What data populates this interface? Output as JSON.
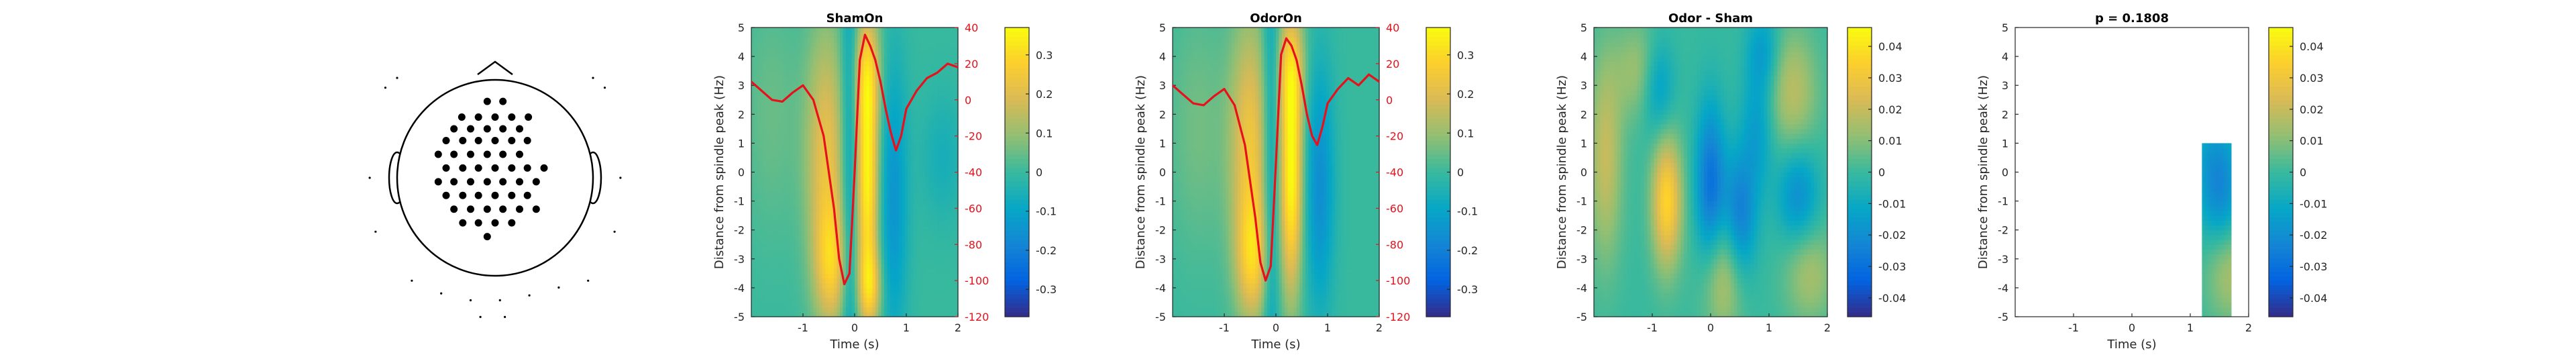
{
  "figure": {
    "colormap": "parula",
    "parula_stops": [
      "#352a87",
      "#0363e1",
      "#1485d4",
      "#06a7c6",
      "#38b99e",
      "#92bf73",
      "#d9ba56",
      "#fcce2e",
      "#f9fb0e"
    ],
    "trace_color": "#e8101a",
    "right_axis_color": "#e8101a"
  },
  "topoplot": {
    "electrode_rows": [
      {
        "y": 0.78,
        "xs": [
          -0.08,
          0.08
        ]
      },
      {
        "y": 0.62,
        "xs": [
          -0.34,
          -0.17,
          0.0,
          0.17,
          0.34
        ]
      },
      {
        "y": 0.5,
        "xs": [
          -0.42,
          -0.25,
          -0.08,
          0.08,
          0.25
        ]
      },
      {
        "y": 0.38,
        "xs": [
          -0.5,
          -0.33,
          -0.17,
          0.0,
          0.17,
          0.33
        ]
      },
      {
        "y": 0.24,
        "xs": [
          -0.58,
          -0.42,
          -0.25,
          -0.08,
          0.08,
          0.25
        ]
      },
      {
        "y": 0.1,
        "xs": [
          -0.5,
          -0.33,
          -0.17,
          0.0,
          0.17,
          0.33,
          0.5
        ]
      },
      {
        "y": -0.04,
        "xs": [
          -0.58,
          -0.42,
          -0.25,
          -0.08,
          0.08,
          0.25,
          0.42
        ]
      },
      {
        "y": -0.18,
        "xs": [
          -0.5,
          -0.33,
          -0.17,
          0.0,
          0.17,
          0.33
        ]
      },
      {
        "y": -0.32,
        "xs": [
          -0.42,
          -0.25,
          -0.08,
          0.08,
          0.25,
          0.42
        ]
      },
      {
        "y": -0.46,
        "xs": [
          -0.33,
          -0.17,
          0.0,
          0.17
        ]
      },
      {
        "y": -0.6,
        "xs": [
          -0.08
        ]
      }
    ],
    "outer_electrodes": [
      [
        -1.12,
        0.92
      ],
      [
        -1.0,
        1.02
      ],
      [
        1.0,
        1.02
      ],
      [
        1.12,
        0.92
      ],
      [
        -1.28,
        0.0
      ],
      [
        -1.22,
        -0.55
      ],
      [
        1.22,
        -0.55
      ],
      [
        1.28,
        0.0
      ],
      [
        -0.85,
        -1.05
      ],
      [
        -0.55,
        -1.18
      ],
      [
        -0.25,
        -1.25
      ],
      [
        0.05,
        -1.25
      ],
      [
        0.35,
        -1.2
      ],
      [
        0.65,
        -1.12
      ],
      [
        0.95,
        -1.05
      ],
      [
        -0.15,
        -1.42
      ],
      [
        0.1,
        -1.42
      ]
    ]
  },
  "chart_data": [
    {
      "type": "heatmap",
      "title": "ShamOn",
      "xlabel": "Time (s)",
      "ylabel": "Distance from spindle peak (Hz)",
      "xlim": [
        -2,
        2
      ],
      "ylim": [
        -5,
        5
      ],
      "xticks": [
        -1,
        0,
        1,
        2
      ],
      "yticks": [
        -5,
        -4,
        -3,
        -2,
        -1,
        0,
        1,
        2,
        3,
        4,
        5
      ],
      "colorbar": {
        "clim": [
          -0.37,
          0.37
        ],
        "ticks": [
          -0.3,
          -0.2,
          -0.1,
          0,
          0.1,
          0.2,
          0.3
        ]
      },
      "features": [
        {
          "t": -0.55,
          "f": 0.5,
          "st": 0.28,
          "sf": 3.2,
          "a": 0.22
        },
        {
          "t": -0.45,
          "f": -3.2,
          "st": 0.22,
          "sf": 1.5,
          "a": 0.2
        },
        {
          "t": 0.25,
          "f": -0.3,
          "st": 0.15,
          "sf": 2.8,
          "a": 0.35
        },
        {
          "t": 0.25,
          "f": 3.5,
          "st": 0.18,
          "sf": 1.5,
          "a": 0.2
        },
        {
          "t": 0.3,
          "f": -4.0,
          "st": 0.16,
          "sf": 1.0,
          "a": 0.2
        },
        {
          "t": -0.1,
          "f": 0.0,
          "st": 0.12,
          "sf": 6.0,
          "a": -0.14
        },
        {
          "t": 0.75,
          "f": -1.0,
          "st": 0.2,
          "sf": 3.5,
          "a": -0.14
        },
        {
          "t": 1.7,
          "f": 0.5,
          "st": 0.3,
          "sf": 1.6,
          "a": -0.06
        },
        {
          "t": -1.6,
          "f": 2.0,
          "st": 0.4,
          "sf": 3.0,
          "a": 0.05
        }
      ],
      "right_axis": {
        "ylim": [
          -120,
          40
        ],
        "ticks": [
          -120,
          -100,
          -80,
          -60,
          -40,
          -20,
          0,
          20,
          40
        ],
        "trace": {
          "x": [
            -2.0,
            -1.8,
            -1.6,
            -1.4,
            -1.2,
            -1.0,
            -0.8,
            -0.6,
            -0.4,
            -0.3,
            -0.2,
            -0.1,
            0.0,
            0.1,
            0.2,
            0.3,
            0.4,
            0.5,
            0.6,
            0.7,
            0.8,
            0.9,
            1.0,
            1.2,
            1.4,
            1.6,
            1.8,
            2.0
          ],
          "y": [
            10,
            5,
            0,
            -1,
            4,
            8,
            0,
            -20,
            -60,
            -88,
            -102,
            -96,
            -40,
            22,
            36,
            30,
            22,
            10,
            -5,
            -18,
            -28,
            -20,
            -5,
            5,
            12,
            15,
            20,
            18
          ]
        }
      }
    },
    {
      "type": "heatmap",
      "title": "OdorOn",
      "xlabel": "Time (s)",
      "ylabel": "Distance from spindle peak (Hz)",
      "xlim": [
        -2,
        2
      ],
      "ylim": [
        -5,
        5
      ],
      "xticks": [
        -1,
        0,
        1,
        2
      ],
      "yticks": [
        -5,
        -4,
        -3,
        -2,
        -1,
        0,
        1,
        2,
        3,
        4,
        5
      ],
      "colorbar": {
        "clim": [
          -0.37,
          0.37
        ],
        "ticks": [
          -0.3,
          -0.2,
          -0.1,
          0,
          0.1,
          0.2,
          0.3
        ]
      },
      "features": [
        {
          "t": -0.5,
          "f": 0.8,
          "st": 0.28,
          "sf": 3.2,
          "a": 0.24
        },
        {
          "t": -0.45,
          "f": -3.0,
          "st": 0.22,
          "sf": 1.5,
          "a": 0.2
        },
        {
          "t": 0.3,
          "f": -0.2,
          "st": 0.15,
          "sf": 2.8,
          "a": 0.36
        },
        {
          "t": 0.3,
          "f": 3.6,
          "st": 0.18,
          "sf": 1.5,
          "a": 0.2
        },
        {
          "t": -0.1,
          "f": 0.0,
          "st": 0.12,
          "sf": 6.0,
          "a": -0.14
        },
        {
          "t": 0.85,
          "f": -0.5,
          "st": 0.2,
          "sf": 3.0,
          "a": -0.16
        },
        {
          "t": -1.5,
          "f": 1.5,
          "st": 0.4,
          "sf": 3.0,
          "a": 0.06
        }
      ],
      "right_axis": {
        "ylim": [
          -120,
          40
        ],
        "ticks": [
          -120,
          -100,
          -80,
          -60,
          -40,
          -20,
          0,
          20,
          40
        ],
        "trace": {
          "x": [
            -2.0,
            -1.8,
            -1.6,
            -1.4,
            -1.2,
            -1.0,
            -0.8,
            -0.6,
            -0.4,
            -0.3,
            -0.2,
            -0.1,
            0.0,
            0.1,
            0.2,
            0.3,
            0.4,
            0.5,
            0.6,
            0.7,
            0.8,
            0.9,
            1.0,
            1.2,
            1.4,
            1.6,
            1.8,
            2.0
          ],
          "y": [
            8,
            3,
            -2,
            -3,
            2,
            6,
            -3,
            -25,
            -65,
            -90,
            -100,
            -92,
            -35,
            25,
            34,
            30,
            22,
            8,
            -8,
            -20,
            -25,
            -15,
            -2,
            6,
            12,
            8,
            14,
            10
          ]
        }
      }
    },
    {
      "type": "heatmap",
      "title": "Odor - Sham",
      "xlabel": "",
      "ylabel": "Distance from spindle peak (Hz)",
      "xlim": [
        -2,
        2
      ],
      "ylim": [
        -5,
        5
      ],
      "xticks": [
        -1,
        0,
        1,
        2
      ],
      "yticks": [
        -5,
        -4,
        -3,
        -2,
        -1,
        0,
        1,
        2,
        3,
        4,
        5
      ],
      "colorbar": {
        "clim": [
          -0.046,
          0.046
        ],
        "ticks": [
          -0.04,
          -0.03,
          -0.02,
          -0.01,
          0,
          0.01,
          0.02,
          0.03,
          0.04
        ]
      },
      "features": [
        {
          "t": -0.75,
          "f": -1.0,
          "st": 0.18,
          "sf": 1.6,
          "a": 0.036
        },
        {
          "t": -1.8,
          "f": 0.5,
          "st": 0.2,
          "sf": 2.5,
          "a": 0.02
        },
        {
          "t": -1.2,
          "f": 3.5,
          "st": 0.3,
          "sf": 1.2,
          "a": 0.015
        },
        {
          "t": 0.2,
          "f": -3.5,
          "st": 0.25,
          "sf": 1.5,
          "a": 0.02
        },
        {
          "t": 1.4,
          "f": 2.8,
          "st": 0.3,
          "sf": 1.5,
          "a": 0.018
        },
        {
          "t": 1.7,
          "f": -3.5,
          "st": 0.3,
          "sf": 1.2,
          "a": 0.015
        },
        {
          "t": 0.0,
          "f": -0.5,
          "st": 0.18,
          "sf": 2.0,
          "a": -0.03
        },
        {
          "t": 0.5,
          "f": -1.5,
          "st": 0.2,
          "sf": 1.5,
          "a": -0.026
        },
        {
          "t": 1.5,
          "f": -0.8,
          "st": 0.25,
          "sf": 1.2,
          "a": -0.02
        },
        {
          "t": -0.9,
          "f": 3.0,
          "st": 0.2,
          "sf": 1.2,
          "a": -0.02
        },
        {
          "t": 0.8,
          "f": 1.5,
          "st": 0.2,
          "sf": 1.5,
          "a": -0.015
        },
        {
          "t": 0.9,
          "f": 4.2,
          "st": 0.2,
          "sf": 1.0,
          "a": -0.015
        }
      ]
    },
    {
      "type": "heatmap",
      "title": "p = 0.1808",
      "xlabel": "Time (s)",
      "ylabel": "Distance from spindle peak (Hz)",
      "xlim": [
        -2,
        2
      ],
      "ylim": [
        -5,
        5
      ],
      "xticks": [
        -1,
        0,
        1,
        2
      ],
      "yticks": [
        -5,
        -4,
        -3,
        -2,
        -1,
        0,
        1,
        2,
        3,
        4,
        5
      ],
      "colorbar": {
        "clim": [
          -0.046,
          0.046
        ],
        "ticks": [
          -0.04,
          -0.03,
          -0.02,
          -0.01,
          0,
          0.01,
          0.02,
          0.03,
          0.04
        ]
      },
      "mask": {
        "t": [
          1.2,
          1.7
        ],
        "f": [
          -5,
          1
        ]
      },
      "features": [
        {
          "t": 1.5,
          "f": -0.8,
          "st": 0.25,
          "sf": 1.2,
          "a": -0.02
        },
        {
          "t": 1.4,
          "f": 0.8,
          "st": 0.3,
          "sf": 1.0,
          "a": -0.01
        },
        {
          "t": 1.7,
          "f": -3.5,
          "st": 0.3,
          "sf": 1.2,
          "a": 0.015
        }
      ]
    }
  ]
}
